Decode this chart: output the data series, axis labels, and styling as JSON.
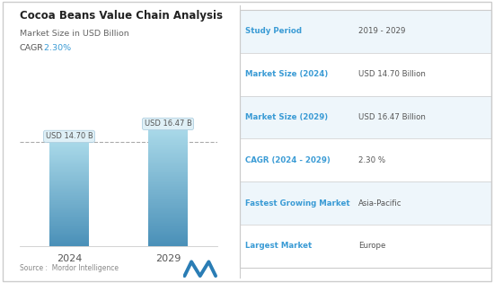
{
  "title": "Cocoa Beans Value Chain Analysis",
  "subtitle": "Market Size in USD Billion",
  "cagr_label": "CAGR",
  "cagr_value": " 2.30%",
  "bars": [
    {
      "year": "2024",
      "value": 14.7,
      "label": "USD 14.70 B"
    },
    {
      "year": "2029",
      "value": 16.47,
      "label": "USD 16.47 B"
    }
  ],
  "bar_color_top": "#a8d8e8",
  "bar_color_bottom": "#4a90b8",
  "ylim": [
    0,
    20
  ],
  "source_text": "Source :  Mordor Intelligence",
  "table_rows": [
    {
      "label": "Study Period",
      "value": "2019 - 2029"
    },
    {
      "label": "Market Size (2024)",
      "value": "USD 14.70 Billion"
    },
    {
      "label": "Market Size (2029)",
      "value": "USD 16.47 Billion"
    },
    {
      "label": "CAGR (2024 - 2029)",
      "value": "2.30 %"
    },
    {
      "label": "Fastest Growing Market",
      "value": "Asia-Pacific"
    },
    {
      "label": "Largest Market",
      "value": "Europe"
    }
  ],
  "table_label_color": "#3a9bd5",
  "table_value_color": "#555555",
  "title_color": "#222222",
  "subtitle_color": "#666666",
  "cagr_text_color": "#555555",
  "cagr_value_color": "#3a9bd5",
  "dashed_line_color": "#aaaaaa",
  "background_color": "#ffffff",
  "border_color": "#dddddd",
  "row_bg_odd": "#eef6fb",
  "row_bg_even": "#ffffff"
}
